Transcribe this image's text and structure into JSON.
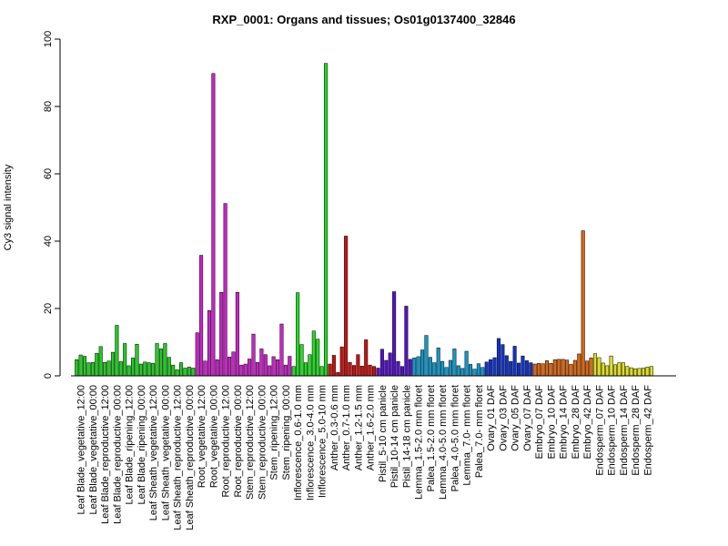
{
  "chart_data": {
    "type": "bar",
    "title": "RXP_0001: Organs and tissues; Os01g0137400_32846",
    "xlabel": "",
    "ylabel": "Cy3 signal intensity",
    "ylim": [
      0,
      100
    ],
    "yticks": [
      0,
      20,
      40,
      60,
      80,
      100
    ],
    "group_colors": {
      "leaf": "#22cc22",
      "root_stem": "#cc22cc",
      "inflorescence": "#22dd22",
      "anther": "#cc1111",
      "pistil": "#5511cc",
      "lemma_palea": "#1199cc",
      "ovary": "#1133cc",
      "embryo": "#dd6611",
      "endosperm": "#dddd22"
    },
    "groups": [
      {
        "label": "Leaf Blade_vegetative_12:00",
        "color": "leaf",
        "values": [
          4.8,
          6.2,
          5.8
        ]
      },
      {
        "label": "Leaf Blade_vegetative_00:00",
        "color": "leaf",
        "values": [
          3.9,
          4.0,
          6.7
        ]
      },
      {
        "label": "Leaf Blade_reproductive_12:00",
        "color": "leaf",
        "values": [
          8.7,
          4.0,
          4.4
        ]
      },
      {
        "label": "Leaf Blade_reproductive_00:00",
        "color": "leaf",
        "values": [
          7.0,
          15.0,
          4.2
        ]
      },
      {
        "label": "Leaf Blade_ripening_12:00",
        "color": "leaf",
        "values": [
          9.6,
          3.0,
          5.3
        ]
      },
      {
        "label": "Leaf Blade_ripening_00:00",
        "color": "leaf",
        "values": [
          9.4,
          3.5,
          4.1
        ]
      },
      {
        "label": "Leaf Sheath_vegetative_12:00",
        "color": "leaf",
        "values": [
          3.9,
          3.7,
          9.6
        ]
      },
      {
        "label": "Leaf Sheath_vegetative_00:00",
        "color": "leaf",
        "values": [
          8.0,
          9.6,
          5.5
        ]
      },
      {
        "label": "Leaf Sheath_reproductive_12:00",
        "color": "leaf",
        "values": [
          3.2,
          1.8,
          3.9
        ]
      },
      {
        "label": "Leaf Sheath_reproductive_00:00",
        "color": "leaf",
        "values": [
          2.3,
          2.6,
          2.3
        ]
      },
      {
        "label": "Root_vegetative_12:00",
        "color": "root_stem",
        "values": [
          12.8,
          35.8,
          4.4
        ]
      },
      {
        "label": "Root_vegetative_00:00",
        "color": "root_stem",
        "values": [
          19.4,
          89.8,
          4.8
        ]
      },
      {
        "label": "Root_reproductive_12:00",
        "color": "root_stem",
        "values": [
          24.8,
          51.2,
          5.6
        ]
      },
      {
        "label": "Root_reproductive_00:00",
        "color": "root_stem",
        "values": [
          7.1,
          24.8,
          3.2
        ]
      },
      {
        "label": "Stem_reproductive_12:00",
        "color": "root_stem",
        "values": [
          3.5,
          5.0,
          12.4
        ]
      },
      {
        "label": "Stem_reproductive_00:00",
        "color": "root_stem",
        "values": [
          4.0,
          8.0,
          6.3
        ]
      },
      {
        "label": "Stem_ripening_12:00",
        "color": "root_stem",
        "values": [
          3.0,
          5.7,
          4.8
        ]
      },
      {
        "label": "Stem_ripening_00:00",
        "color": "root_stem",
        "values": [
          15.4,
          3.2,
          5.8
        ]
      },
      {
        "label": "Inflorescence_0.6-1.0 mm",
        "color": "inflorescence",
        "values": [
          2.8,
          24.7,
          9.3
        ]
      },
      {
        "label": "Inflorescence_3.0-4.0 mm",
        "color": "inflorescence",
        "values": [
          3.9,
          6.3,
          13.3
        ]
      },
      {
        "label": "Inflorescence_5.0-10 mm",
        "color": "inflorescence",
        "values": [
          10.9,
          2.8,
          92.8
        ]
      },
      {
        "label": "Anther_0.3-0.6 mm",
        "color": "anther",
        "values": [
          3.5,
          6.1,
          1.0
        ]
      },
      {
        "label": "Anther_0.7-1.0 mm",
        "color": "anther",
        "values": [
          8.6,
          41.5,
          4.0
        ]
      },
      {
        "label": "Anther_1.2-1.5 mm",
        "color": "anther",
        "values": [
          3.1,
          6.3,
          2.9
        ]
      },
      {
        "label": "Anther_1.6-2.0 mm",
        "color": "anther",
        "values": [
          10.7,
          3.2,
          2.8
        ]
      },
      {
        "label": "Pistil_5-10 cm panicle",
        "color": "pistil",
        "values": [
          2.3,
          7.9,
          4.6
        ]
      },
      {
        "label": "Pistil_10-14 cm panicle",
        "color": "pistil",
        "values": [
          6.8,
          25.0,
          4.3
        ]
      },
      {
        "label": "Pistil_14-18 cm panicle",
        "color": "pistil",
        "values": [
          2.8,
          20.7,
          4.9
        ]
      },
      {
        "label": "Lemma_1.5-2.0 mm floret",
        "color": "lemma_palea",
        "values": [
          5.3,
          5.7,
          7.7
        ]
      },
      {
        "label": "Palea_1.5-2.0 mm floret",
        "color": "lemma_palea",
        "values": [
          12.0,
          5.5,
          3.9
        ]
      },
      {
        "label": "Lemma_4.0-5.0 mm floret",
        "color": "lemma_palea",
        "values": [
          8.3,
          4.3,
          2.5
        ]
      },
      {
        "label": "Palea_4.0-5.0 mm floret",
        "color": "lemma_palea",
        "values": [
          4.6,
          8.0,
          3.0
        ]
      },
      {
        "label": "Lemma_7.0- mm floret",
        "color": "lemma_palea",
        "values": [
          2.2,
          7.3,
          3.4
        ]
      },
      {
        "label": "Palea_7.0- mm floret",
        "color": "lemma_palea",
        "values": [
          2.0,
          3.6,
          2.5
        ]
      },
      {
        "label": "Ovary_01 DAF",
        "color": "ovary",
        "values": [
          4.1,
          4.8,
          5.4
        ]
      },
      {
        "label": "Ovary_03 DAF",
        "color": "ovary",
        "values": [
          11.1,
          9.3,
          6.0
        ]
      },
      {
        "label": "Ovary_05 DAF",
        "color": "ovary",
        "values": [
          4.3,
          8.8,
          3.8
        ]
      },
      {
        "label": "Ovary_07 DAF",
        "color": "ovary",
        "values": [
          5.9,
          4.5,
          3.9
        ]
      },
      {
        "label": "Embryo_07 DAF",
        "color": "embryo",
        "values": [
          3.5,
          3.7,
          3.6
        ]
      },
      {
        "label": "Embryo_10 DAF",
        "color": "embryo",
        "values": [
          4.5,
          3.7,
          4.8
        ]
      },
      {
        "label": "Embryo_14 DAF",
        "color": "embryo",
        "values": [
          4.9,
          4.9,
          4.7
        ]
      },
      {
        "label": "Embryo_28 DAF",
        "color": "embryo",
        "values": [
          3.4,
          4.6,
          6.5
        ]
      },
      {
        "label": "Embryo_42 DAF",
        "color": "embryo",
        "values": [
          43.1,
          4.4,
          5.3
        ]
      },
      {
        "label": "Endosperm_07 DAF",
        "color": "endosperm",
        "values": [
          6.6,
          5.4,
          3.8
        ]
      },
      {
        "label": "Endosperm_10 DAF",
        "color": "endosperm",
        "values": [
          3.0,
          5.9,
          3.3
        ]
      },
      {
        "label": "Endosperm_14 DAF",
        "color": "endosperm",
        "values": [
          3.9,
          3.9,
          2.8
        ]
      },
      {
        "label": "Endosperm_28 DAF",
        "color": "endosperm",
        "values": [
          2.4,
          2.1,
          2.2
        ]
      },
      {
        "label": "Endosperm_42 DAF",
        "color": "endosperm",
        "values": [
          2.3,
          2.6,
          2.8
        ]
      }
    ]
  }
}
